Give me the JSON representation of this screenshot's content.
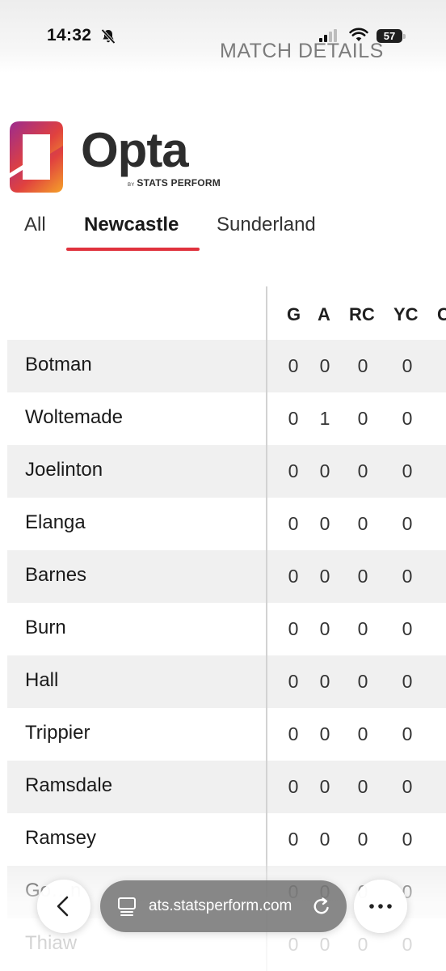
{
  "status_bar": {
    "time": "14:32",
    "battery": "57"
  },
  "page": {
    "heading": "MATCH DETAILS"
  },
  "logo": {
    "word": "Opta",
    "by": "BY",
    "sub": "STATS PERFORM"
  },
  "tabs": [
    {
      "label": "All",
      "active": false
    },
    {
      "label": "Newcastle",
      "active": true
    },
    {
      "label": "Sunderland",
      "active": false
    }
  ],
  "table": {
    "columns": [
      "G",
      "A",
      "RC",
      "YC",
      "C"
    ],
    "rows": [
      {
        "player": "Botman",
        "G": "0",
        "A": "0",
        "RC": "0",
        "YC": "0"
      },
      {
        "player": "Woltemade",
        "G": "0",
        "A": "1",
        "RC": "0",
        "YC": "0"
      },
      {
        "player": "Joelinton",
        "G": "0",
        "A": "0",
        "RC": "0",
        "YC": "0"
      },
      {
        "player": "Elanga",
        "G": "0",
        "A": "0",
        "RC": "0",
        "YC": "0"
      },
      {
        "player": "Barnes",
        "G": "0",
        "A": "0",
        "RC": "0",
        "YC": "0"
      },
      {
        "player": "Burn",
        "G": "0",
        "A": "0",
        "RC": "0",
        "YC": "0"
      },
      {
        "player": "Hall",
        "G": "0",
        "A": "0",
        "RC": "0",
        "YC": "0"
      },
      {
        "player": "Trippier",
        "G": "0",
        "A": "0",
        "RC": "0",
        "YC": "0"
      },
      {
        "player": "Ramsdale",
        "G": "0",
        "A": "0",
        "RC": "0",
        "YC": "0"
      },
      {
        "player": "Ramsey",
        "G": "0",
        "A": "0",
        "RC": "0",
        "YC": "0"
      },
      {
        "player": "Go…n",
        "G": "0",
        "A": "0",
        "RC": "0",
        "YC": "0"
      },
      {
        "player": "Thiaw",
        "G": "0",
        "A": "0",
        "RC": "0",
        "YC": "0"
      }
    ]
  },
  "browser": {
    "url": "ats.statsperform.com"
  },
  "colors": {
    "accent": "#e0323d",
    "row_shade": "#f0f0f0"
  },
  "icons": [
    "bell-slash-icon",
    "signal-icon",
    "wifi-icon",
    "battery-icon",
    "tab-overview-icon",
    "reload-icon",
    "chevron-left-icon",
    "more-icon"
  ]
}
